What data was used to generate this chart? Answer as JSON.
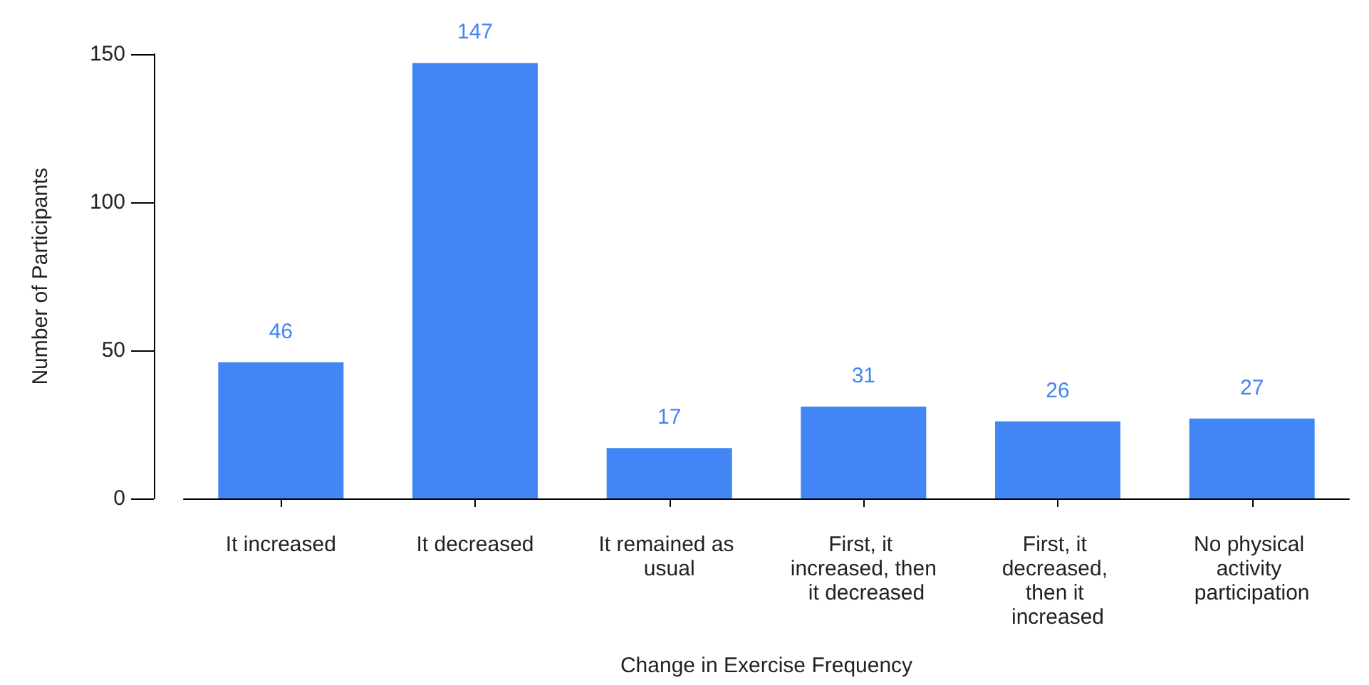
{
  "chart_data": {
    "type": "bar",
    "xlabel": "Change in Exercise Frequency",
    "ylabel": "Number of Participants",
    "categories": [
      "It increased",
      "It decreased",
      "It remained as usual",
      "First, it increased, then it decreased",
      "First, it decreased, then it increased",
      "No physical activity participation"
    ],
    "values": [
      46,
      147,
      17,
      31,
      26,
      27
    ],
    "color": "#4285f4",
    "ylim": [
      0,
      150
    ],
    "yticks": [
      0,
      50,
      100,
      150
    ],
    "grid": false,
    "data_labels": true
  }
}
